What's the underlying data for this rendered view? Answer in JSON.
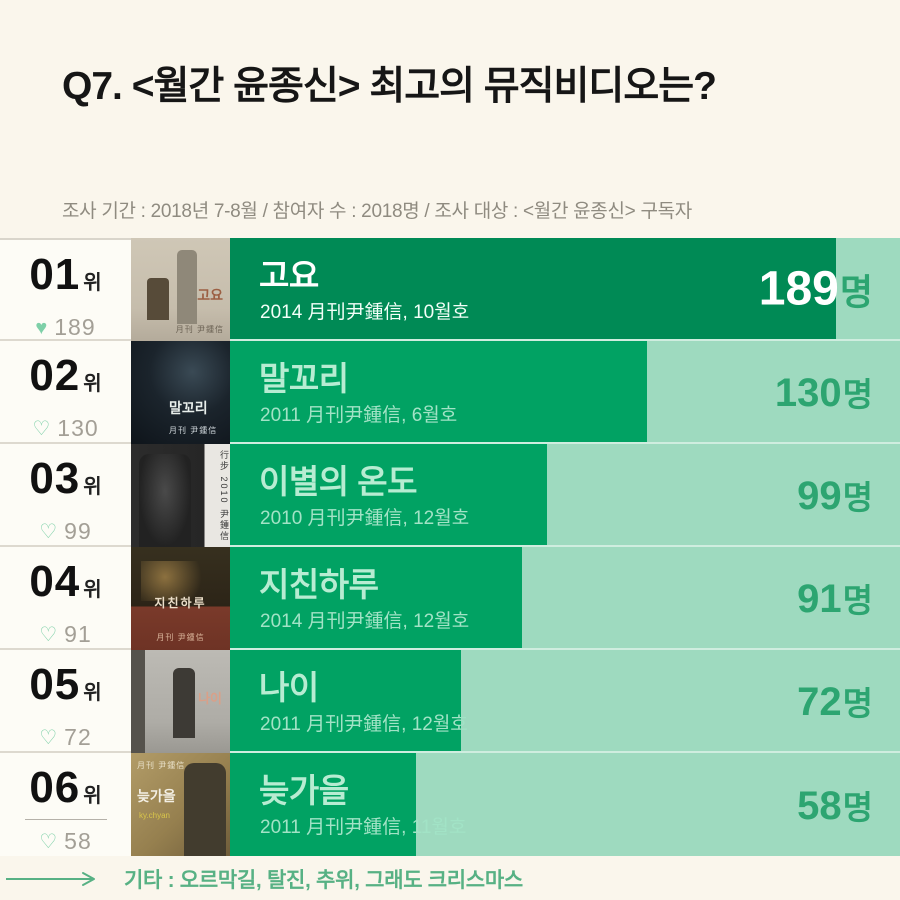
{
  "header": {
    "title": "Q7. <월간 윤종신> 최고의 뮤직비디오는?",
    "survey_info": "조사 기간 : 2018년 7-8월 / 참여자 수 : 2018명 / 조사 대상 : <월간 윤종신> 구독자"
  },
  "colors": {
    "background": "#faf6ec",
    "bar_rank1": "#008a55",
    "bar_default": "#01a263",
    "bar_track": "#9edabf",
    "value_green": "#2da571",
    "heart_mint": "#7ed0a8",
    "footer_green": "#57b184"
  },
  "chart_data": {
    "type": "bar",
    "orientation": "horizontal",
    "title": "Q7. <월간 윤종신> 최고의 뮤직비디오는?",
    "unit": "명",
    "categories": [
      "고요",
      "말꼬리",
      "이별의 온도",
      "지친하루",
      "나이",
      "늦가을"
    ],
    "values": [
      189,
      130,
      99,
      91,
      72,
      58
    ],
    "value_labels": [
      "189명",
      "130명",
      "99명",
      "91명",
      "72명",
      "58명"
    ],
    "annotations": [
      "2014 月刊尹鍾信, 10월호",
      "2011 月刊尹鍾信, 6월호",
      "2010 月刊尹鍾信, 12월호",
      "2014 月刊尹鍾信, 12월호",
      "2011 月刊尹鍾信, 12월호",
      "2011 月刊尹鍾信, 11월호"
    ],
    "xlim": [
      0,
      209
    ],
    "legend": "none",
    "grid": false
  },
  "rows": [
    {
      "rank": "01",
      "rank_suffix": "위",
      "heart_icon": "♥",
      "like_count": "189",
      "title": "고요",
      "issue": "2014 月刊尹鍾信, 10월호",
      "value": 189,
      "unit": "명",
      "cover": {
        "label": "고요",
        "brand": "月刊 尹鍾信"
      }
    },
    {
      "rank": "02",
      "rank_suffix": "위",
      "heart_icon": "♡",
      "like_count": "130",
      "title": "말꼬리",
      "issue": "2011 月刊尹鍾信, 6월호",
      "value": 130,
      "unit": "명",
      "cover": {
        "label": "말꼬리",
        "brand": "月刊 尹鍾信"
      }
    },
    {
      "rank": "03",
      "rank_suffix": "위",
      "heart_icon": "♡",
      "like_count": "99",
      "title": "이별의 온도",
      "issue": "2010 月刊尹鍾信, 12월호",
      "value": 99,
      "unit": "명",
      "cover": {
        "label": "行步 2010 尹鍾信",
        "brand": ""
      }
    },
    {
      "rank": "04",
      "rank_suffix": "위",
      "heart_icon": "♡",
      "like_count": "91",
      "title": "지친하루",
      "issue": "2014 月刊尹鍾信, 12월호",
      "value": 91,
      "unit": "명",
      "cover": {
        "label": "지친하루",
        "brand": "月刊 尹鍾信"
      }
    },
    {
      "rank": "05",
      "rank_suffix": "위",
      "heart_icon": "♡",
      "like_count": "72",
      "title": "나이",
      "issue": "2011 月刊尹鍾信, 12월호",
      "value": 72,
      "unit": "명",
      "cover": {
        "label": "나이",
        "brand": ""
      }
    },
    {
      "rank": "06",
      "rank_suffix": "위",
      "heart_icon": "♡",
      "like_count": "58",
      "title": "늦가을",
      "issue": "2011 月刊尹鍾信, 11월호",
      "value": 58,
      "unit": "명",
      "cover": {
        "label": "늦가을",
        "brand": "月刊 尹鍾信",
        "accent": "ky.chyan"
      }
    }
  ],
  "footer": {
    "etc_label": "기타 : 오르막길, 탈진, 추위, 그래도 크리스마스"
  }
}
